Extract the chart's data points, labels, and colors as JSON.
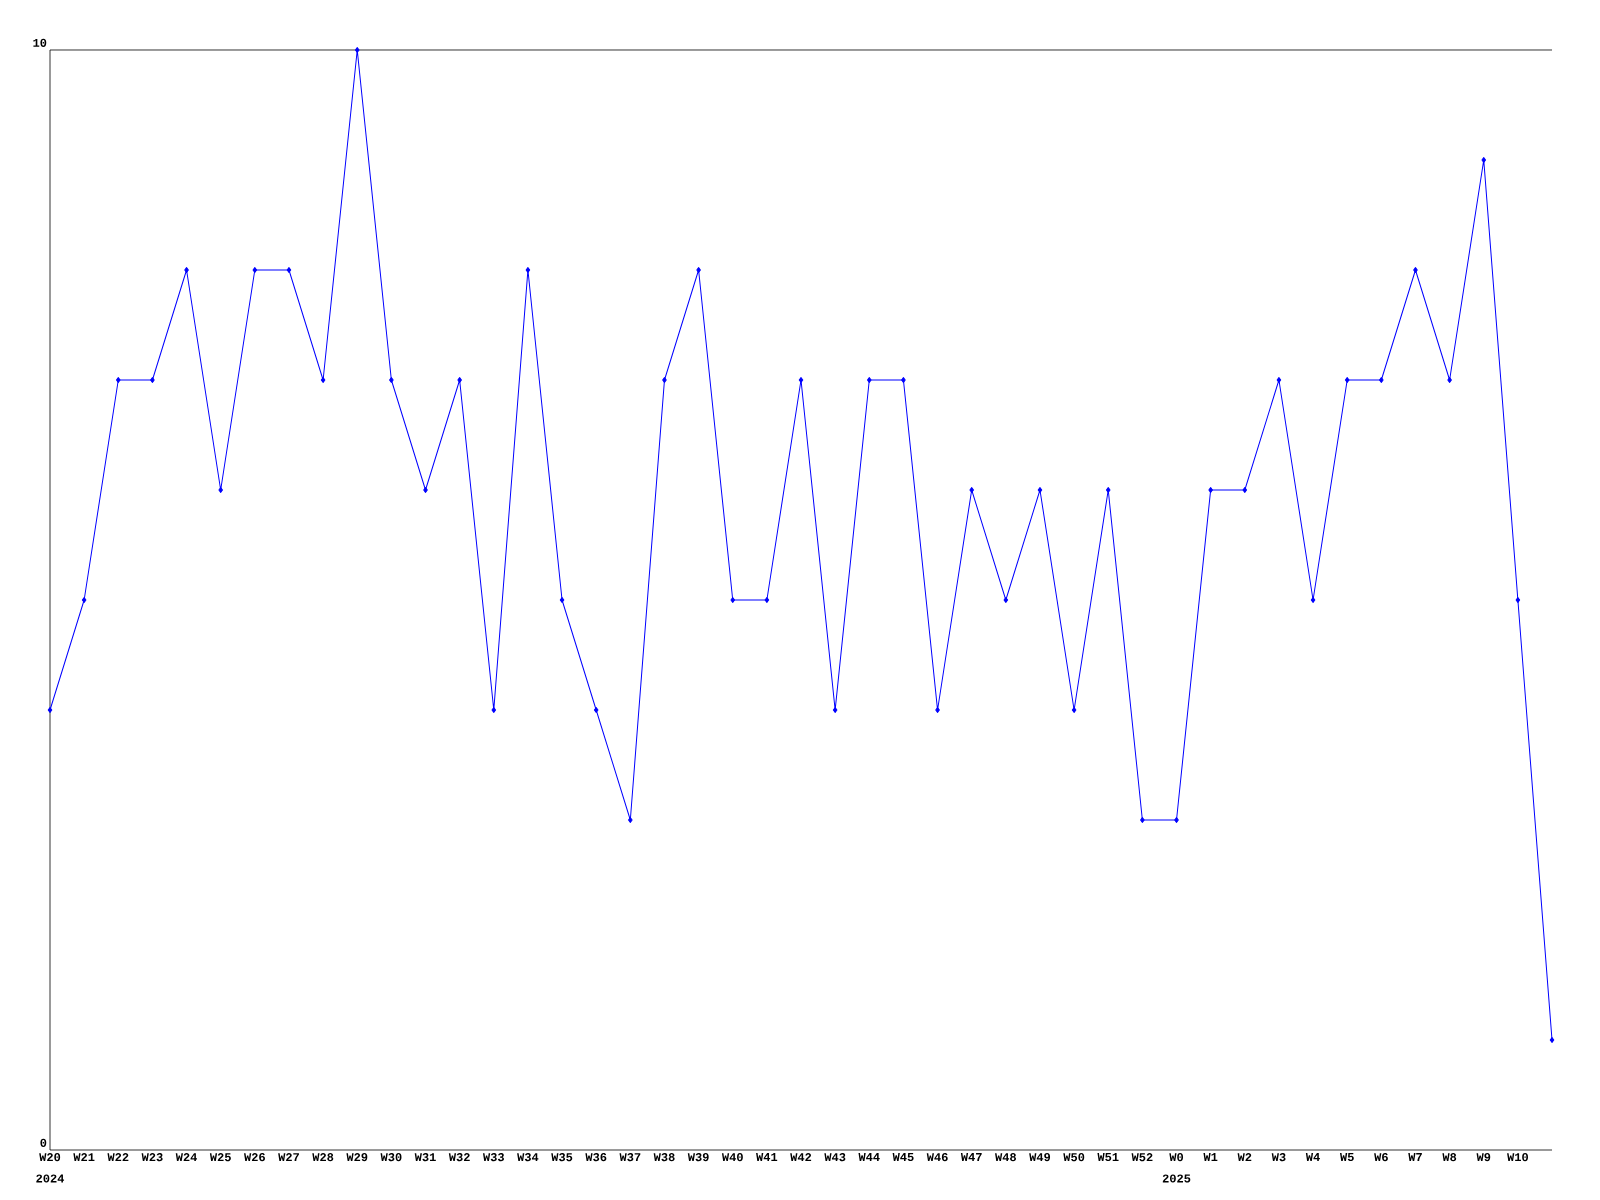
{
  "chart_data": {
    "type": "line",
    "categories": [
      "W20",
      "W21",
      "W22",
      "W23",
      "W24",
      "W25",
      "W26",
      "W27",
      "W28",
      "W29",
      "W30",
      "W31",
      "W32",
      "W33",
      "W34",
      "W35",
      "W36",
      "W37",
      "W38",
      "W39",
      "W40",
      "W41",
      "W42",
      "W43",
      "W44",
      "W45",
      "W46",
      "W47",
      "W48",
      "W49",
      "W50",
      "W51",
      "W52",
      "W0",
      "W1",
      "W2",
      "W3",
      "W4",
      "W5",
      "W6",
      "W7",
      "W8",
      "W9",
      "W10",
      null
    ],
    "values": [
      4,
      5,
      7,
      7,
      8,
      6,
      8,
      8,
      7,
      10,
      7,
      6,
      7,
      4,
      8,
      5,
      4,
      3,
      7,
      8,
      5,
      5,
      7,
      4,
      7,
      7,
      4,
      6,
      5,
      6,
      4,
      6,
      3,
      3,
      6,
      6,
      7,
      5,
      7,
      7,
      8,
      7,
      9,
      5,
      1
    ],
    "color": "#0000ff",
    "marker": "diamond",
    "ylim": [
      0,
      10
    ],
    "yticks": [
      0,
      10
    ],
    "annotations": [
      "2024",
      "2025"
    ]
  }
}
